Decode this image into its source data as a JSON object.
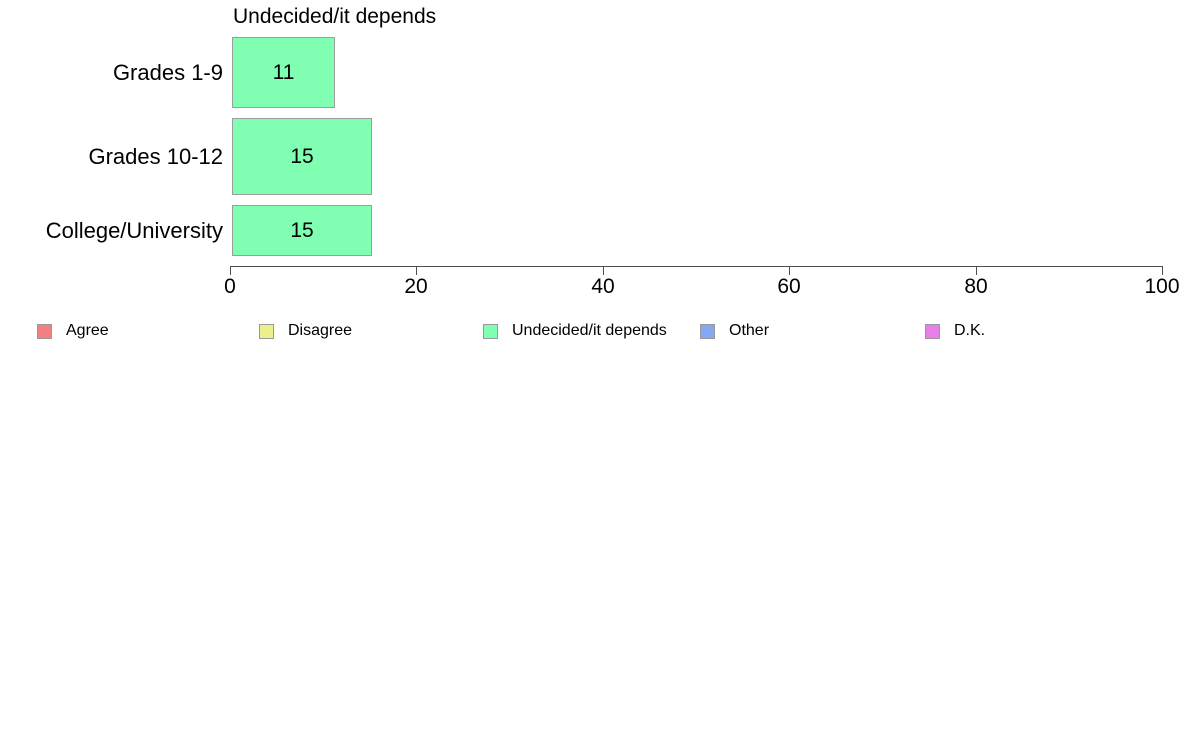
{
  "chart_data": {
    "type": "bar",
    "orientation": "horizontal",
    "title": "Undecided/it depends",
    "categories": [
      "Grades 1-9",
      "Grades 10-12",
      "College/University"
    ],
    "values": [
      11,
      15,
      15
    ],
    "xlabel": "",
    "ylabel": "",
    "xlim": [
      0,
      100
    ],
    "x_ticks": [
      0,
      20,
      40,
      60,
      80,
      100
    ],
    "grid": false,
    "bar_color": "#80FFB3",
    "bar_border_color": "#9d9d9d",
    "axis_color": "#4d4d4d",
    "legend_position": "bottom",
    "legend": [
      {
        "label": "Agree",
        "color": "#F28080"
      },
      {
        "label": "Disagree",
        "color": "#ECEF8C"
      },
      {
        "label": "Undecided/it depends",
        "color": "#80FFB3"
      },
      {
        "label": "Other",
        "color": "#84A8F2"
      },
      {
        "label": "D.K.",
        "color": "#E87EE8"
      }
    ]
  }
}
